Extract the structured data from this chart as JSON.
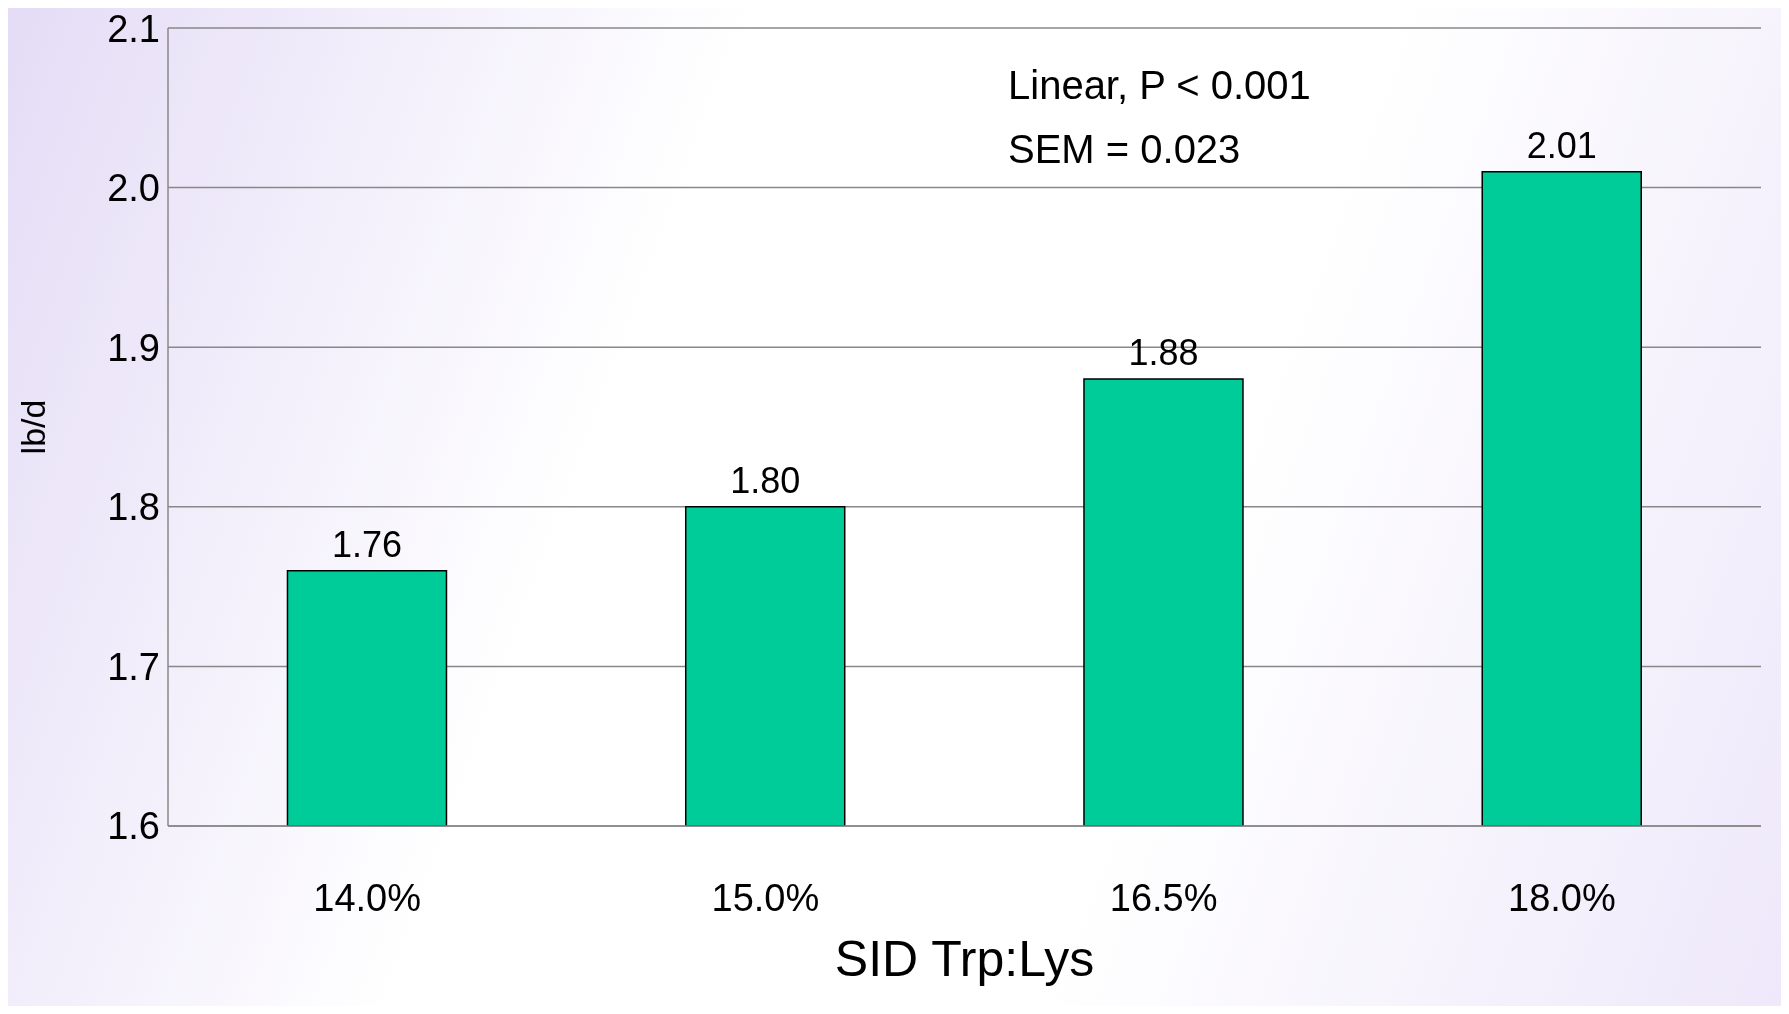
{
  "chart_data": {
    "type": "bar",
    "xlabel": "SID Trp:Lys",
    "ylabel": "lb/d",
    "categories": [
      "14.0%",
      "15.0%",
      "16.5%",
      "18.0%"
    ],
    "values": [
      1.76,
      1.8,
      1.88,
      2.01
    ],
    "value_labels": [
      "1.76",
      "1.80",
      "1.88",
      "2.01"
    ],
    "color": "#00cc99",
    "ylim": [
      1.6,
      2.1
    ],
    "yticks": [
      {
        "value": 1.6,
        "label": "1.6"
      },
      {
        "value": 1.7,
        "label": "1.7"
      },
      {
        "value": 1.8,
        "label": "1.8"
      },
      {
        "value": 1.9,
        "label": "1.9"
      },
      {
        "value": 2.0,
        "label": "2.0"
      },
      {
        "value": 2.1,
        "label": "2.1"
      }
    ],
    "grid": "y",
    "legend": false,
    "annotations": [
      "Linear, P < 0.001",
      "SEM = 0.023"
    ]
  }
}
